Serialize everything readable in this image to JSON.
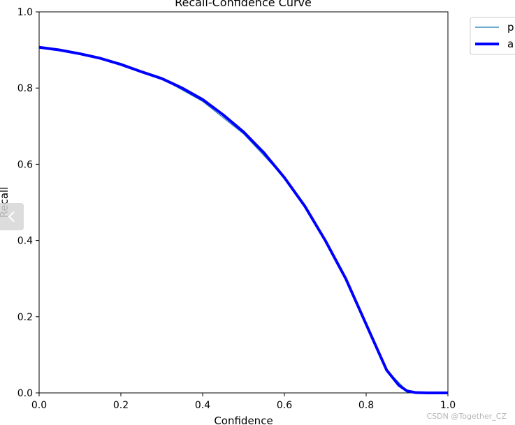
{
  "chart_data": {
    "type": "line",
    "title": "Recall-Confidence Curve",
    "xlabel": "Confidence",
    "ylabel": "Recall",
    "xlim": [
      0.0,
      1.0
    ],
    "ylim": [
      0.0,
      1.0
    ],
    "xticks": [
      "0.0",
      "0.2",
      "0.4",
      "0.6",
      "0.8",
      "1.0"
    ],
    "yticks": [
      "0.0",
      "0.2",
      "0.4",
      "0.6",
      "0.8",
      "1.0"
    ],
    "grid": false,
    "legend": "outside-top-right",
    "series": [
      {
        "name": "p",
        "color": "#1f77b4",
        "linewidth": "thin",
        "x": [
          0.0,
          0.1,
          0.2,
          0.3,
          0.4,
          0.5,
          0.6,
          0.65,
          0.7,
          0.75,
          0.8,
          0.85,
          0.9,
          0.95,
          1.0
        ],
        "y": [
          0.907,
          0.89,
          0.865,
          0.825,
          0.765,
          0.68,
          0.565,
          0.49,
          0.4,
          0.3,
          0.18,
          0.06,
          0.005,
          0.0,
          0.0
        ]
      },
      {
        "name": "a",
        "color": "#0000ff",
        "linewidth": "thick",
        "x": [
          0.0,
          0.05,
          0.1,
          0.15,
          0.2,
          0.25,
          0.3,
          0.35,
          0.4,
          0.45,
          0.5,
          0.55,
          0.6,
          0.65,
          0.7,
          0.75,
          0.8,
          0.85,
          0.88,
          0.9,
          0.92,
          0.95,
          1.0
        ],
        "y": [
          0.907,
          0.9,
          0.89,
          0.878,
          0.862,
          0.843,
          0.825,
          0.8,
          0.77,
          0.73,
          0.685,
          0.63,
          0.565,
          0.49,
          0.4,
          0.3,
          0.18,
          0.06,
          0.02,
          0.005,
          0.001,
          0.0,
          0.0
        ]
      }
    ]
  },
  "watermark": "CSDN @Together_CZ"
}
